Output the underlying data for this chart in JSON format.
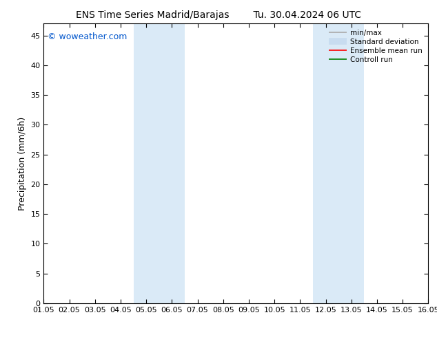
{
  "title_left": "ENS Time Series Madrid/Barajas",
  "title_right": "Tu. 30.04.2024 06 UTC",
  "ylabel": "Precipitation (mm/6h)",
  "xlim": [
    0,
    15
  ],
  "ylim": [
    0,
    47
  ],
  "yticks": [
    0,
    5,
    10,
    15,
    20,
    25,
    30,
    35,
    40,
    45
  ],
  "xtick_labels": [
    "01.05",
    "02.05",
    "03.05",
    "04.05",
    "05.05",
    "06.05",
    "07.05",
    "08.05",
    "09.05",
    "10.05",
    "11.05",
    "12.05",
    "13.05",
    "14.05",
    "15.05",
    "16.05"
  ],
  "xtick_positions": [
    0,
    1,
    2,
    3,
    4,
    5,
    6,
    7,
    8,
    9,
    10,
    11,
    12,
    13,
    14,
    15
  ],
  "shaded_regions": [
    {
      "xmin": 3.5,
      "xmax": 5.5,
      "color": "#daeaf7"
    },
    {
      "xmin": 10.5,
      "xmax": 12.5,
      "color": "#daeaf7"
    }
  ],
  "bg_color": "#ffffff",
  "legend_items": [
    {
      "label": "min/max",
      "color": "#aaaaaa",
      "lw": 1.2
    },
    {
      "label": "Standard deviation",
      "color": "#c8dcf0",
      "lw": 7
    },
    {
      "label": "Ensemble mean run",
      "color": "#ff0000",
      "lw": 1.2
    },
    {
      "label": "Controll run",
      "color": "#008000",
      "lw": 1.2
    }
  ],
  "watermark": "© woweather.com",
  "watermark_color": "#0055cc",
  "title_fontsize": 10,
  "axis_label_fontsize": 9,
  "tick_fontsize": 8,
  "legend_fontsize": 7.5
}
